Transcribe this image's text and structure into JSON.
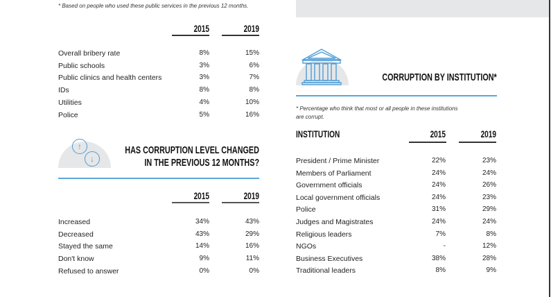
{
  "bribery": {
    "footnote": "* Based on people who used these public services in the previous 12 months.",
    "years": [
      "2015",
      "2019"
    ],
    "rows": [
      {
        "label": "Overall bribery rate",
        "v2015": "8%",
        "v2019": "15%"
      },
      {
        "label": "Public schools",
        "v2015": "3%",
        "v2019": "6%"
      },
      {
        "label": "Public clinics and health centers",
        "v2015": "3%",
        "v2019": "7%"
      },
      {
        "label": "IDs",
        "v2015": "8%",
        "v2019": "8%"
      },
      {
        "label": "Utilities",
        "v2015": "4%",
        "v2019": "10%"
      },
      {
        "label": "Police",
        "v2015": "5%",
        "v2019": "16%"
      }
    ]
  },
  "change": {
    "title_line1": "HAS CORRUPTION LEVEL CHANGED",
    "title_line2": "IN THE PREVIOUS 12 MONTHS?",
    "icon": "up-down-arrows-icon",
    "years": [
      "2015",
      "2019"
    ],
    "rows": [
      {
        "label": "Increased",
        "v2015": "34%",
        "v2019": "43%"
      },
      {
        "label": "Decreased",
        "v2015": "43%",
        "v2019": "29%"
      },
      {
        "label": "Stayed the same",
        "v2015": "14%",
        "v2019": "16%"
      },
      {
        "label": "Don't know",
        "v2015": "9%",
        "v2019": "11%"
      },
      {
        "label": "Refused to answer",
        "v2015": "0%",
        "v2019": "0%"
      }
    ]
  },
  "institution": {
    "title": "CORRUPTION BY INSTITUTION*",
    "icon": "building-columns-icon",
    "footnote_line1": "* Percentage who think that most or all people in these institutions",
    "footnote_line2": "are corrupt.",
    "column_header": "INSTITUTION",
    "years": [
      "2015",
      "2019"
    ],
    "rows": [
      {
        "label": "President / Prime Minister",
        "v2015": "22%",
        "v2019": "23%"
      },
      {
        "label": "Members of Parliament",
        "v2015": "24%",
        "v2019": "24%"
      },
      {
        "label": "Government officials",
        "v2015": "24%",
        "v2019": "26%"
      },
      {
        "label": "Local government officials",
        "v2015": "24%",
        "v2019": "23%"
      },
      {
        "label": "Police",
        "v2015": "31%",
        "v2019": "29%"
      },
      {
        "label": "Judges and Magistrates",
        "v2015": "24%",
        "v2019": "24%"
      },
      {
        "label": "Religious leaders",
        "v2015": "7%",
        "v2019": "8%"
      },
      {
        "label": "NGOs",
        "v2015": "-",
        "v2019": "12%"
      },
      {
        "label": "Business Executives",
        "v2015": "38%",
        "v2019": "28%"
      },
      {
        "label": "Traditional leaders",
        "v2015": "8%",
        "v2019": "9%"
      }
    ]
  },
  "colors": {
    "accent": "#5aa6db",
    "icon_bg": "#e6e7e8"
  }
}
